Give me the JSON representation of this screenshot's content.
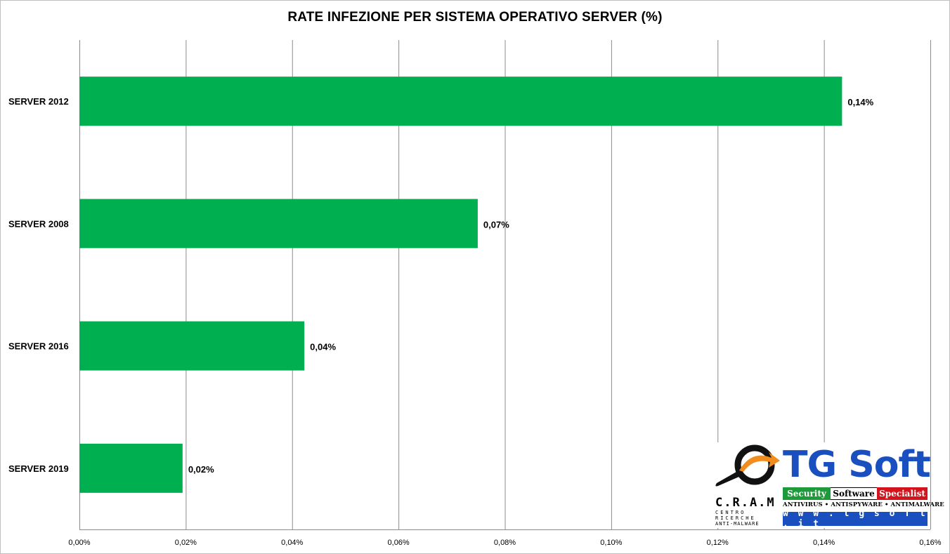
{
  "chart_data": {
    "type": "bar",
    "orientation": "horizontal",
    "title": "RATE INFEZIONE PER SISTEMA OPERATIVO SERVER (%)",
    "categories": [
      "SERVER 2012",
      "SERVER 2008",
      "SERVER 2016",
      "SERVER 2019"
    ],
    "values": [
      0.1434,
      0.0749,
      0.0423,
      0.0194
    ],
    "data_labels": [
      "0,14%",
      "0,07%",
      "0,04%",
      "0,02%"
    ],
    "xlim": [
      0,
      0.16
    ],
    "ticks": [
      0,
      0.02,
      0.04,
      0.06,
      0.08,
      0.1,
      0.12,
      0.14,
      0.16
    ],
    "tick_labels": [
      "0,00%",
      "0,02%",
      "0,04%",
      "0,06%",
      "0,08%",
      "0,10%",
      "0,12%",
      "0,14%",
      "0,16%"
    ],
    "grid": "vertical",
    "bar_color": "#00b050",
    "legend": "none"
  },
  "logo": {
    "brand": "TG Soft",
    "band": [
      "Security",
      "Software",
      "Specialist"
    ],
    "tagline": "ANTIVIRUS • ANTISPYWARE • ANTIMALWARE",
    "website": "w w w . t g s o f t . i t",
    "cram": "C.R.A.M",
    "cram_sub1": "CENTRO",
    "cram_sub2": "RICERCHE",
    "cram_sub3": "ANTI-MALWARE",
    "colors": {
      "blue": "#1a4fbf",
      "green": "#1e9a3a",
      "red": "#d4141c",
      "orange": "#f28c1c"
    }
  }
}
